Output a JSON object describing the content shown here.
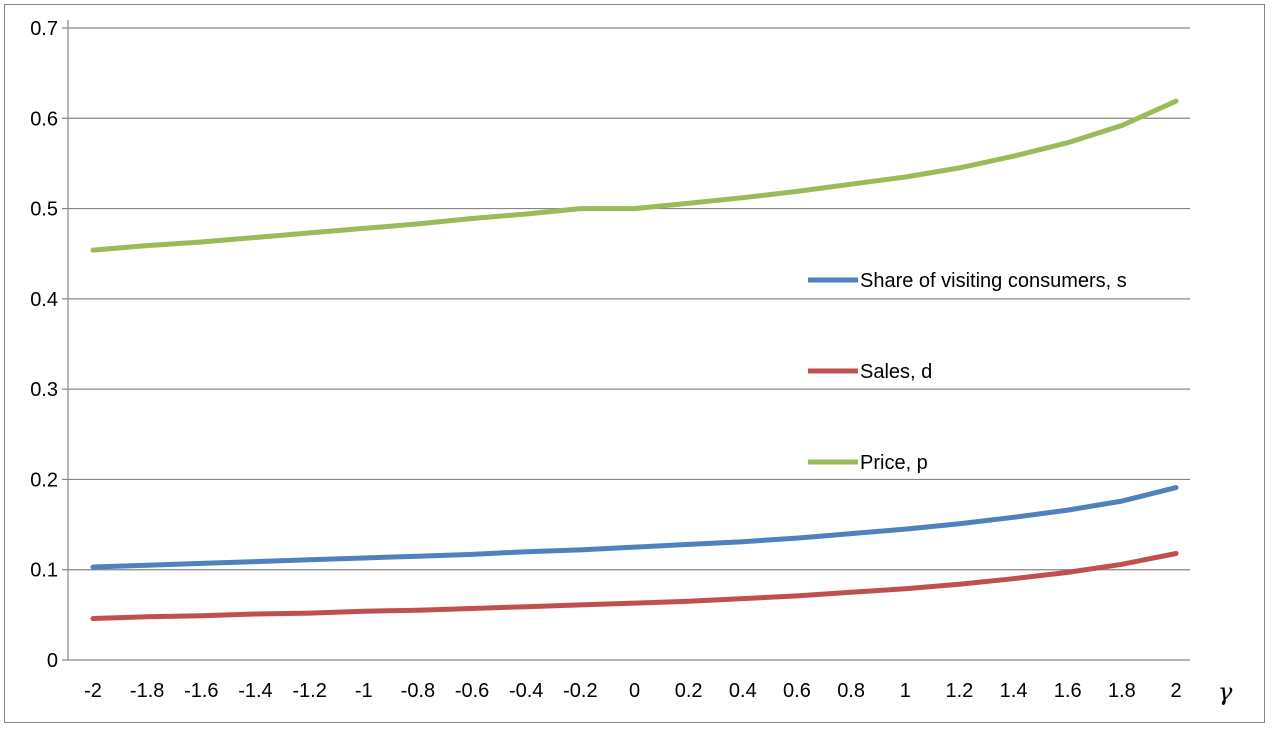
{
  "chart_data": {
    "type": "line",
    "title": "",
    "xlabel": "γ",
    "ylabel": "",
    "x": [
      -2,
      -1.8,
      -1.6,
      -1.4,
      -1.2,
      -1,
      -0.8,
      -0.6,
      -0.4,
      -0.2,
      0,
      0.2,
      0.4,
      0.6,
      0.8,
      1,
      1.2,
      1.4,
      1.6,
      1.8,
      2
    ],
    "x_tick_labels": [
      "-2",
      "-1.8",
      "-1.6",
      "-1.4",
      "-1.2",
      "-1",
      "-0.8",
      "-0.6",
      "-0.4",
      "-0.2",
      "0",
      "0.2",
      "0.4",
      "0.6",
      "0.8",
      "1",
      "1.2",
      "1.4",
      "1.6",
      "1.8",
      "2"
    ],
    "ylim": [
      0,
      0.7
    ],
    "y_tick_labels": [
      "0",
      "0.1",
      "0.2",
      "0.3",
      "0.4",
      "0.5",
      "0.6",
      "0.7"
    ],
    "grid": "horizontal",
    "legend_position": "right",
    "series": [
      {
        "name": "Share of visiting consumers, s",
        "color": "#4f81bd",
        "values": [
          0.103,
          0.105,
          0.107,
          0.109,
          0.111,
          0.113,
          0.115,
          0.117,
          0.12,
          0.122,
          0.125,
          0.128,
          0.131,
          0.135,
          0.14,
          0.145,
          0.151,
          0.158,
          0.166,
          0.176,
          0.191
        ]
      },
      {
        "name": "Sales, d",
        "color": "#c0504d",
        "values": [
          0.046,
          0.048,
          0.049,
          0.051,
          0.052,
          0.054,
          0.055,
          0.057,
          0.059,
          0.061,
          0.063,
          0.065,
          0.068,
          0.071,
          0.075,
          0.079,
          0.084,
          0.09,
          0.097,
          0.106,
          0.118
        ]
      },
      {
        "name": "Price, p",
        "color": "#9bbb59",
        "values": [
          0.454,
          0.459,
          0.463,
          0.468,
          0.473,
          0.478,
          0.483,
          0.489,
          0.494,
          0.5,
          0.5,
          0.506,
          0.512,
          0.519,
          0.527,
          0.535,
          0.545,
          0.558,
          0.573,
          0.592,
          0.619
        ]
      }
    ]
  }
}
